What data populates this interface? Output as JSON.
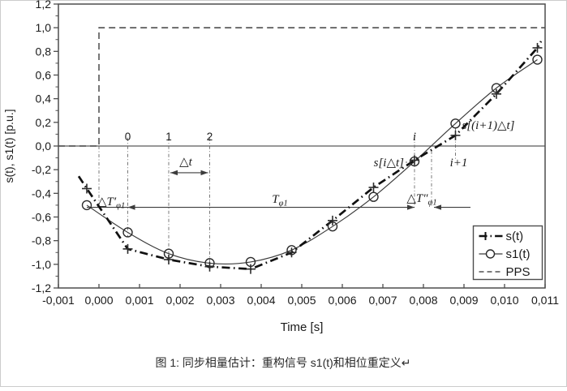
{
  "figure": {
    "caption": "图 1: 同步相量估计：重构信号 s1(t)和相位重定义↵"
  },
  "chart_data": {
    "type": "line",
    "title": "",
    "xlabel": "Time [s]",
    "ylabel": "s(t), s1(t) [p.u.]",
    "xlim": [
      -0.001,
      0.011
    ],
    "ylim": [
      -1.2,
      1.2
    ],
    "grid": false,
    "decimal_separator": ",",
    "x_ticks": {
      "values": [
        -0.001,
        0.0,
        0.001,
        0.002,
        0.003,
        0.004,
        0.005,
        0.006,
        0.007,
        0.008,
        0.009,
        0.01,
        0.011
      ],
      "labels": [
        "-0,001",
        "0,000",
        "0,001",
        "0,002",
        "0,003",
        "0,004",
        "0,005",
        "0,006",
        "0,007",
        "0,008",
        "0,009",
        "0,010",
        "0,011"
      ]
    },
    "y_ticks": {
      "values": [
        1.2,
        1.0,
        0.8,
        0.6,
        0.4,
        0.2,
        0.0,
        -0.2,
        -0.4,
        -0.6,
        -0.8,
        -1.0,
        -1.2
      ],
      "labels": [
        "1,2",
        "1,0",
        "0,8",
        "0,6",
        "0,4",
        "0,2",
        "0,0",
        "-0,2",
        "-0,4",
        "-0,6",
        "-0,8",
        "-1,0",
        "-1,2"
      ],
      "minor_step": 0.1
    },
    "sample_times": [
      -0.0003,
      0.00071,
      0.00172,
      0.00273,
      0.00374,
      0.00475,
      0.00576,
      0.00677,
      0.00778,
      0.00879,
      0.0098,
      0.01081
    ],
    "series": [
      {
        "name": "s(t)",
        "marker": "plus",
        "line": "bold-dashdot",
        "values": [
          -0.36,
          -0.87,
          -0.96,
          -1.02,
          -1.04,
          -0.9,
          -0.63,
          -0.35,
          -0.12,
          0.09,
          0.44,
          0.83
        ]
      },
      {
        "name": "s1(t)",
        "marker": "circle",
        "line": "thin-solid",
        "values": [
          -0.5,
          -0.73,
          -0.91,
          -0.99,
          -0.98,
          -0.88,
          -0.68,
          -0.43,
          -0.13,
          0.19,
          0.49,
          0.73
        ]
      },
      {
        "name": "PPS",
        "marker": "none",
        "line": "dashed",
        "step": {
          "t_rise": 0.0,
          "low": 0.0,
          "high": 1.0
        }
      }
    ],
    "legend": {
      "position": "lower-right",
      "entries": [
        "s(t)",
        "s1(t)",
        "PPS"
      ]
    },
    "sample_index_labels": [
      {
        "text": "0",
        "t": 0.00071,
        "italic": false
      },
      {
        "text": "1",
        "t": 0.00172,
        "italic": false
      },
      {
        "text": "2",
        "t": 0.00273,
        "italic": false
      },
      {
        "text": "i",
        "t": 0.00778,
        "italic": true
      },
      {
        "text": "i+1",
        "t": 0.00879,
        "italic": true
      }
    ],
    "point_labels": [
      {
        "text": "s[i△t]",
        "t": 0.00778,
        "anchor": "end"
      },
      {
        "text": "s[(i+1)△t]",
        "t": 0.00879,
        "anchor": "start"
      }
    ],
    "annotations": {
      "delta_t": {
        "label": "△t",
        "between": [
          0.00172,
          0.00273
        ],
        "level": -0.226
      },
      "T_phi1": {
        "label": "T",
        "sub": "φ1",
        "from_t": 0.00071,
        "to_t": 0.00778,
        "level": -0.518
      },
      "dT1_phi1": {
        "label": "△T′",
        "sub": "φ1",
        "from_t": 0.0,
        "to_t": 0.00071
      },
      "dT2_phi1": {
        "label": "△T″",
        "sub": "φ1",
        "from_t": 0.00778,
        "to_t": 0.0082
      }
    },
    "guides": [
      {
        "t": 0.0,
        "v1": 0.0,
        "v2": -0.518
      },
      {
        "t": 0.00071,
        "v1": 0.07,
        "v2": -0.77
      },
      {
        "t": 0.00172,
        "v1": 0.07,
        "v2": -0.95
      },
      {
        "t": 0.00273,
        "v1": 0.07,
        "v2": -1.04
      },
      {
        "t": 0.00778,
        "v1": 0.08,
        "v2": -0.518
      },
      {
        "t": 0.0082,
        "v1": -0.04,
        "v2": -0.518
      },
      {
        "t": 0.00879,
        "v1": 0.15,
        "v2": -0.123
      }
    ],
    "colors": {
      "ink": "#1a1a1a",
      "frame": "#4d4d4d",
      "line": "#3c3c3c",
      "guide": "#6a6a6a"
    }
  }
}
